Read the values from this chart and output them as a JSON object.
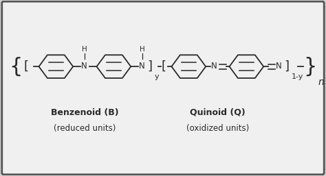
{
  "bg_color": "#d0d0d0",
  "inner_bg": "#f0f0f0",
  "line_color": "#2a2a2a",
  "text_color": "#2a2a2a",
  "N_color": "#2a2a2a",
  "label1": "Benzenoid (B)",
  "label1b": "(reduced units)",
  "label2": "Quinoid (Q)",
  "label2b": "(oxidized units)",
  "sub_n": "n",
  "sub_y": "y",
  "sub_1y": "1-y",
  "lw": 1.3,
  "ring_lw": 1.3
}
